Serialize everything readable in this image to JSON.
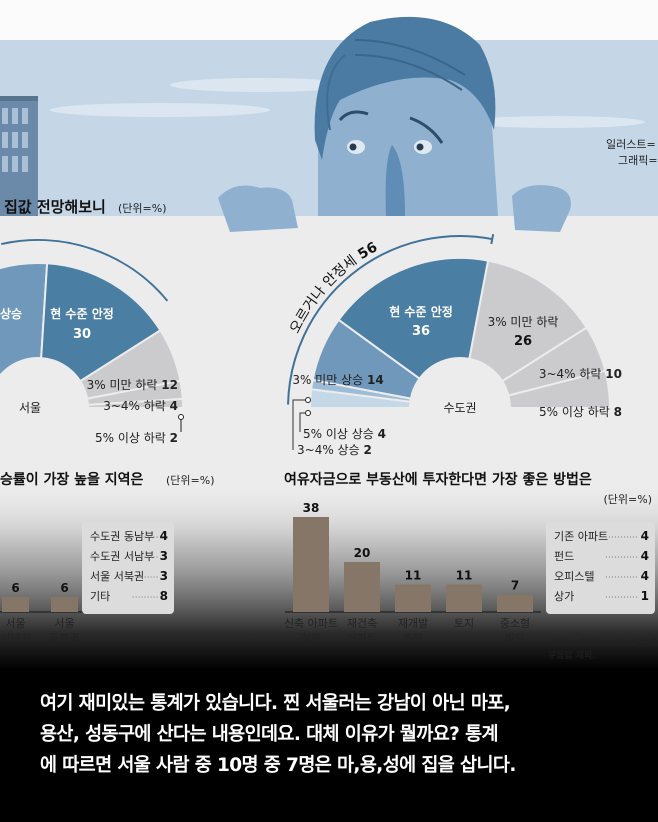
{
  "credits": {
    "illustrator": "일러스트=",
    "graphics": "그래픽="
  },
  "caption": {
    "lines": [
      "여기 재미있는 통계가 있습니다. 찐 서울러는 강남이 아닌 마포,",
      "용산, 성동구에 산다는 내용인데요. 대체 이유가 뭘까요? 통계",
      "에 따르면 서울 사람 중 10명 중 7명은 마,용,성에 집을 삽니다."
    ]
  },
  "colors": {
    "background": "#ececec",
    "band": "#c5d6e6",
    "blue_dark": "#4a7ea3",
    "blue_mid": "#6f98bb",
    "blue_light": "#9dbcd8",
    "blue_pale": "#c5d8e8",
    "gray_slice": "#cbcbcd",
    "bar": "#857668"
  },
  "chart_data": [
    {
      "type": "pie",
      "variant": "semicircle",
      "title": "집값 전망해보니",
      "unit": "(단위=%)",
      "center_label": "서울",
      "bracket_label": "",
      "slices": [
        {
          "label": "상승",
          "value": null,
          "partial": true
        },
        {
          "label": "현 수준 안정",
          "value": 30
        },
        {
          "label": "3% 미만 하락",
          "value": 12
        },
        {
          "label": "3~4% 하락",
          "value": 4
        },
        {
          "label": "5% 이상 하락",
          "value": 2
        }
      ]
    },
    {
      "type": "pie",
      "variant": "semicircle",
      "center_label": "수도권",
      "bracket_label": "오르거나 안정세",
      "bracket_value": 56,
      "slices": [
        {
          "label": "5% 이상 상승",
          "value": 4
        },
        {
          "label": "3~4% 상승",
          "value": 2
        },
        {
          "label": "3% 미만 상승",
          "value": 14
        },
        {
          "label": "현 수준 안정",
          "value": 36
        },
        {
          "label": "3% 미만 하락",
          "value": 26
        },
        {
          "label": "3~4% 하락",
          "value": 10
        },
        {
          "label": "5% 이상 하락",
          "value": 8
        }
      ]
    },
    {
      "type": "bar",
      "title": "승률이 가장 높을 지역은",
      "unit": "(단위=%)",
      "categories": [
        [
          "서울",
          "서남권"
        ],
        [
          "서울",
          "동북권"
        ]
      ],
      "values": [
        6,
        6
      ],
      "others": [
        {
          "label": "수도권 동남부",
          "value": 4
        },
        {
          "label": "수도권 서남부",
          "value": 3
        },
        {
          "label": "서울 서북권",
          "value": 3
        },
        {
          "label": "기타",
          "value": 8
        }
      ]
    },
    {
      "type": "bar",
      "title": "여유자금으로 부동산에 투자한다면 가장 좋은 방법은",
      "unit": "(단위=%)",
      "categories": [
        [
          "신축 아파트",
          "청약"
        ],
        [
          "재건축",
          "아파트"
        ],
        [
          "재개발",
          "주택"
        ],
        [
          "토지",
          ""
        ],
        [
          "중소형",
          "빌딩"
        ]
      ],
      "values": [
        38,
        20,
        11,
        11,
        7
      ],
      "others": [
        {
          "label": "기존 아파트",
          "value": 4
        },
        {
          "label": "펀드",
          "value": 4
        },
        {
          "label": "오피스텔",
          "value": 4
        },
        {
          "label": "상가",
          "value": 1
        }
      ],
      "footnote": [
        "*부동산 전문가 50인 설문 조",
        "무응답 제외."
      ]
    }
  ]
}
